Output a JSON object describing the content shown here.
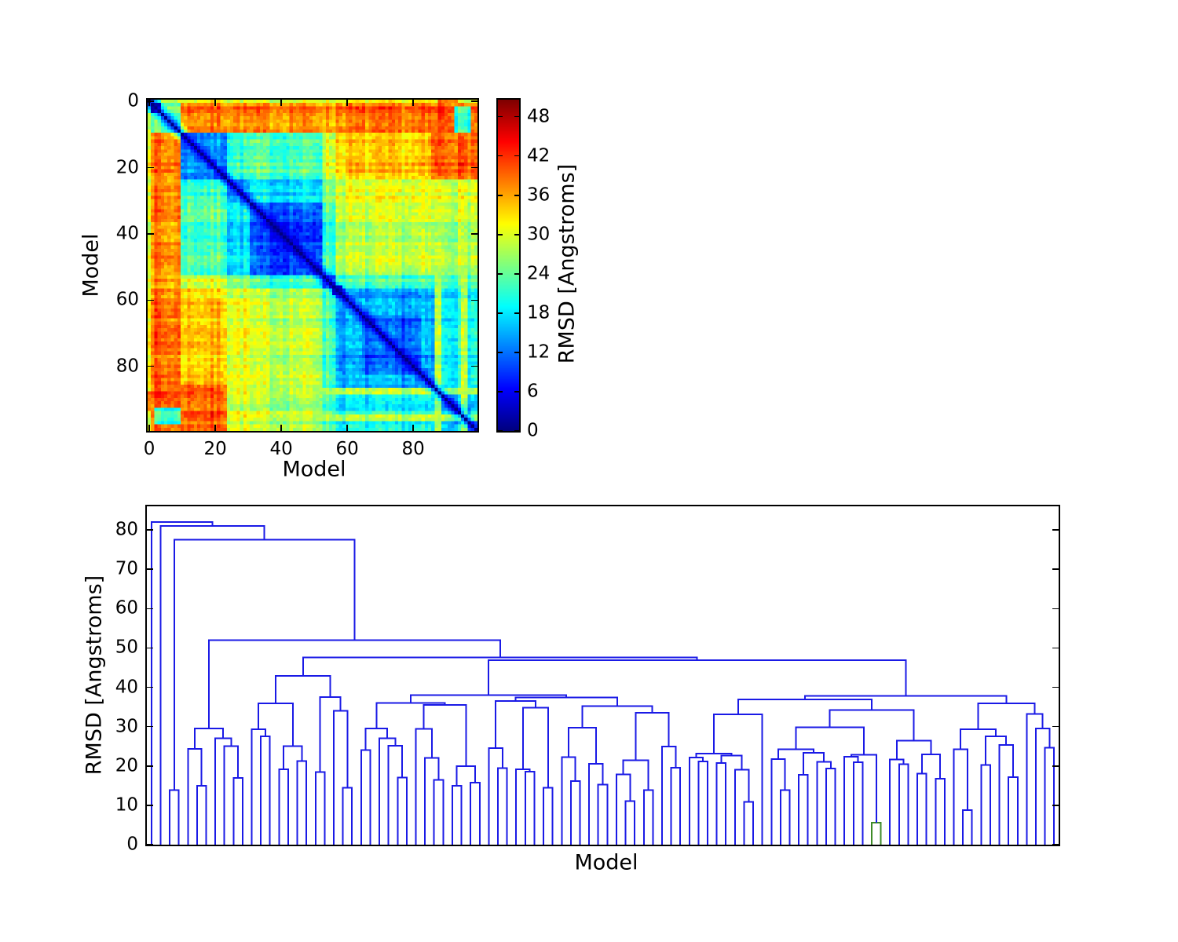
{
  "figure": {
    "background": "#ffffff",
    "text_color": "#000000",
    "frame_color": "#000000"
  },
  "chart_data": [
    {
      "type": "heatmap",
      "title": "",
      "xlabel": "Model",
      "ylabel": "Model",
      "colorbar_label": "RMSD [Angstroms]",
      "colormap": "jet",
      "n_models": 100,
      "xticks": [
        0,
        20,
        40,
        60,
        80
      ],
      "yticks": [
        0,
        20,
        40,
        60,
        80
      ],
      "colorbar_ticks": [
        0,
        6,
        12,
        18,
        24,
        30,
        36,
        42,
        48
      ],
      "vmin": 0,
      "vmax": 50.6,
      "diagonal_value": 0,
      "segments": [
        0,
        1,
        4,
        10,
        24,
        31,
        53,
        57,
        87,
        100
      ],
      "block_means": [
        [
          0,
          22,
          30,
          33,
          32,
          32,
          32,
          33,
          31
        ],
        [
          22,
          6,
          24,
          39,
          38,
          38,
          37,
          39,
          39
        ],
        [
          30,
          24,
          22,
          38,
          37,
          37,
          36,
          38,
          38
        ],
        [
          33,
          39,
          38,
          14,
          22,
          23,
          30,
          34,
          36
        ],
        [
          32,
          38,
          37,
          22,
          15,
          18,
          26,
          30,
          30
        ],
        [
          32,
          38,
          37,
          23,
          18,
          11,
          22,
          28,
          28
        ],
        [
          32,
          37,
          36,
          30,
          26,
          22,
          13,
          22,
          24
        ],
        [
          33,
          39,
          38,
          34,
          30,
          28,
          22,
          14,
          19
        ],
        [
          31,
          39,
          38,
          36,
          30,
          28,
          24,
          19,
          17
        ]
      ],
      "patches": [
        [
          33,
          51,
          33,
          51,
          9
        ],
        [
          65,
          83,
          65,
          83,
          10.5
        ],
        [
          88,
          94,
          0,
          24,
          41
        ],
        [
          93,
          98,
          2,
          13,
          21
        ],
        [
          10,
          24,
          86,
          100,
          40
        ],
        [
          56,
          59,
          56,
          59,
          8
        ],
        [
          87,
          89,
          53,
          100,
          27
        ],
        [
          95,
          97,
          53,
          100,
          27
        ]
      ],
      "noise_seed": 7,
      "noise_amp": 4.0,
      "row_amp": 4.4
    },
    {
      "type": "dendrogram",
      "title": "",
      "xlabel": "Model",
      "ylabel": "RMSD [Angstroms]",
      "yticks": [
        0,
        10,
        20,
        30,
        40,
        50,
        60,
        70,
        80
      ],
      "ylim": [
        0,
        86
      ],
      "leaf_count": 100,
      "link_color": "#1a1ae6",
      "cluster_color": "#3f8b28",
      "notable_merge_heights": [
        82,
        81,
        77.5,
        52,
        47.6,
        46.9,
        42.9,
        38,
        37.8
      ],
      "green_cluster": {
        "height": 5.6,
        "approx_leaf_positions": [
          80,
          81
        ]
      },
      "tree": [
        82,
        0,
        [
          81,
          0,
          [
            77.5,
            [
              13.9,
              0,
              0
            ],
            [
              52,
              [
                29.5,
                [
                  24.3,
                  0,
                  [
                    15,
                    0,
                    0
                  ]
                ],
                [
                  27,
                  0,
                  [
                    25,
                    0,
                    [
                      17,
                      0,
                      0
                    ]
                  ]
                ]
              ],
              [
                47.6,
                [
                  42.9,
                  [
                    35.9,
                    [
                      29.3,
                      0,
                      [
                        27.5,
                        0,
                        0
                      ]
                    ],
                    [
                      25,
                      [
                        19.2,
                        0,
                        0
                      ],
                      [
                        21.3,
                        0,
                        0
                      ]
                    ]
                  ],
                  [
                    37.5,
                    [
                      18.5,
                      0,
                      0
                    ],
                    [
                      34,
                      0,
                      [
                        14.5,
                        0,
                        0
                      ]
                    ]
                  ]
                ],
                [
                  46.9,
                  [
                    38,
                    [
                      36,
                      [
                        29.5,
                        [
                          24,
                          0,
                          0
                        ],
                        [
                          27,
                          0,
                          [
                            25.1,
                            0,
                            [
                              17.1,
                              0,
                              0
                            ]
                          ]
                        ]
                      ],
                      [
                        35.5,
                        [
                          29.4,
                          0,
                          [
                            22,
                            0,
                            [
                              16.5,
                              0,
                              0
                            ]
                          ]
                        ],
                        [
                          20,
                          [
                            15,
                            0,
                            0
                          ],
                          [
                            15.8,
                            0,
                            0
                          ]
                        ]
                      ]
                    ],
                    [
                      37.4,
                      [
                        36.5,
                        [
                          24.5,
                          0,
                          [
                            19.5,
                            0,
                            0
                          ]
                        ],
                        [
                          34.8,
                          [
                            19.2,
                            0,
                            [
                              18.6,
                              0,
                              0
                            ]
                          ],
                          [
                            14.5,
                            0,
                            0
                          ]
                        ]
                      ],
                      [
                        35.2,
                        [
                          29.7,
                          [
                            22.2,
                            0,
                            [
                              16.2,
                              0,
                              0
                            ]
                          ],
                          [
                            20.6,
                            0,
                            [
                              15.3,
                              0,
                              0
                            ]
                          ]
                        ],
                        [
                          33.5,
                          [
                            21.5,
                            [
                              17.9,
                              0,
                              [
                                11.1,
                                0,
                                0
                              ]
                            ],
                            [
                              13.9,
                              0,
                              0
                            ]
                          ],
                          [
                            24.9,
                            0,
                            [
                              19.6,
                              0,
                              0
                            ]
                          ]
                        ]
                      ]
                    ]
                  ],
                  [
                    37.8,
                    [
                      36.9,
                      [
                        33.1,
                        [
                          23.1,
                          [
                            22.1,
                            0,
                            [
                              21.2,
                              0,
                              0
                            ]
                          ],
                          [
                            22.6,
                            [
                              20.8,
                              0,
                              0
                            ],
                            [
                              19.1,
                              0,
                              [
                                10.9,
                                0,
                                0
                              ]
                            ]
                          ]
                        ],
                        0
                      ],
                      [
                        34.2,
                        [
                          29.8,
                          [
                            24.2,
                            [
                              21.8,
                              0,
                              [
                                13.9,
                                0,
                                0
                              ]
                            ],
                            [
                              23.3,
                              [
                                17.8,
                                0,
                                0
                              ],
                              [
                                21.1,
                                0,
                                [
                                  19.4,
                                  0,
                                  0
                                ]
                              ]
                            ]
                          ],
                          [
                            22.8,
                            [
                              22.3,
                              0,
                              [
                                21,
                                0,
                                0
                              ]
                            ],
                            [
                              5.6,
                              0,
                              0,
                              "g"
                            ]
                          ]
                        ],
                        [
                          26.4,
                          [
                            21.7,
                            0,
                            [
                              20.5,
                              0,
                              0
                            ]
                          ],
                          [
                            22.9,
                            [
                              18.1,
                              0,
                              0
                            ],
                            [
                              16.8,
                              0,
                              0
                            ]
                          ]
                        ]
                      ]
                    ],
                    [
                      35.9,
                      [
                        29.3,
                        [
                          24.2,
                          0,
                          [
                            8.8,
                            0,
                            0
                          ]
                        ],
                        [
                          27.5,
                          [
                            20.3,
                            0,
                            0
                          ],
                          [
                            25.3,
                            0,
                            [
                              17.2,
                              0,
                              0
                            ]
                          ]
                        ]
                      ],
                      [
                        33.2,
                        0,
                        [
                          29.5,
                          0,
                          [
                            24.6,
                            0,
                            0
                          ]
                        ]
                      ]
                    ]
                  ]
                ]
              ]
            ]
          ]
        ]
      ]
    }
  ]
}
